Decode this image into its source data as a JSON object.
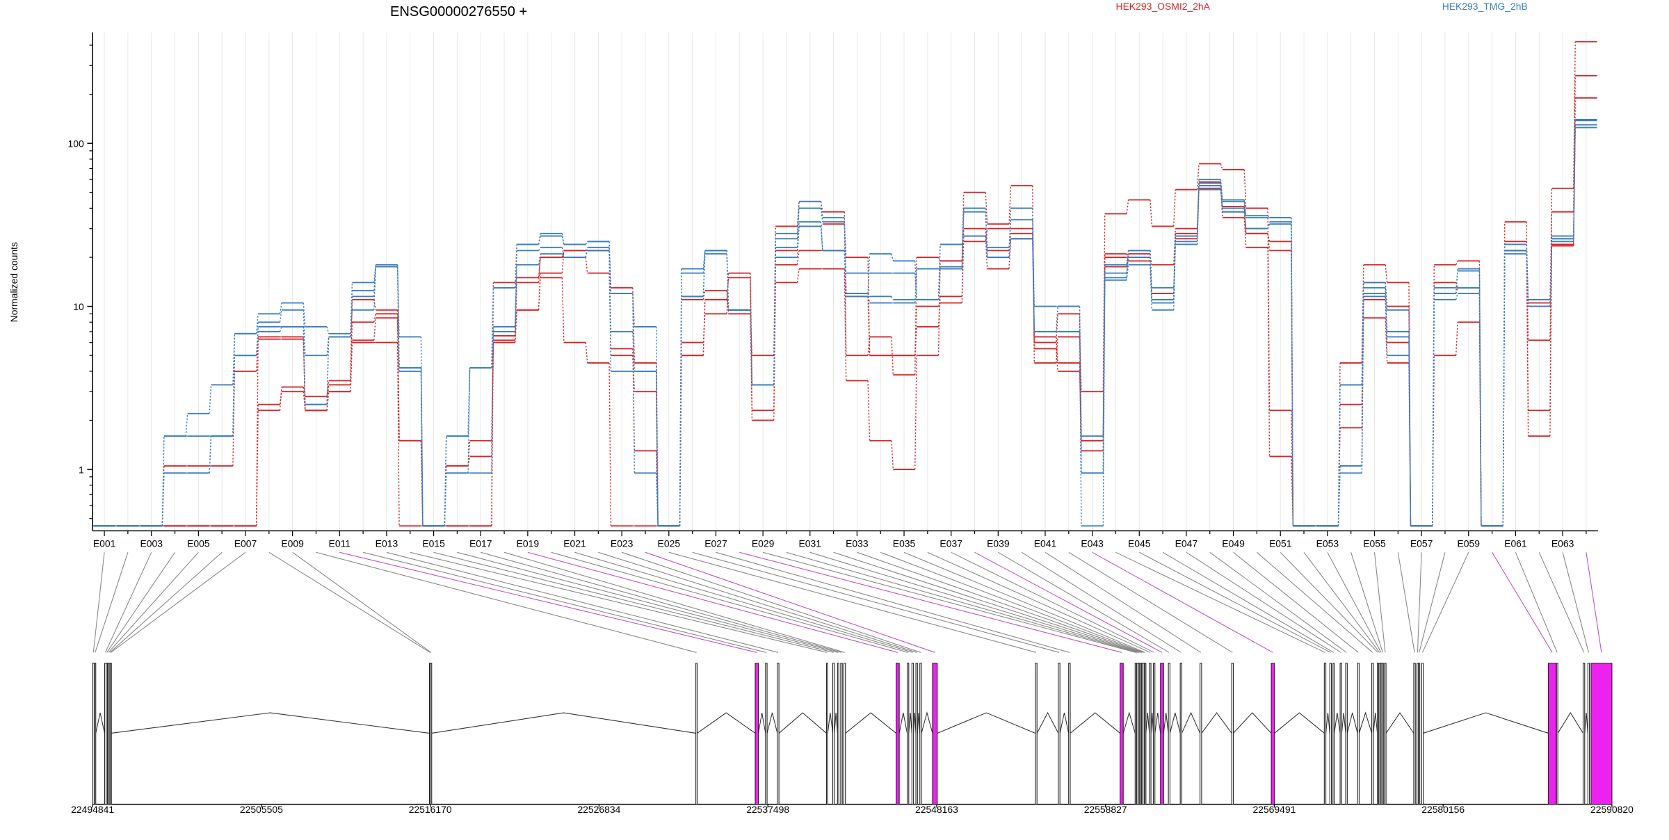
{
  "title": "ENSG00000276550 +",
  "ylabel": "Normalized counts",
  "legend": [
    {
      "label": "HEK293_OSMI2_2hA",
      "color": "#d62728"
    },
    {
      "label": "HEK293_TMG_2hB",
      "color": "#3a7fc1"
    }
  ],
  "chart_data": {
    "type": "line",
    "title": "ENSG00000276550 +",
    "ylabel": "Normalized counts",
    "y_scale": "log",
    "ylim": [
      0.42,
      480
    ],
    "y_ticks": [
      1,
      10,
      100
    ],
    "y_tick_labels": [
      "1",
      "10",
      "100"
    ],
    "grid": "vertical",
    "legend_position": "top",
    "categories": [
      "E001",
      "E002",
      "E003",
      "E004",
      "E005",
      "E006",
      "E007",
      "E008",
      "E009",
      "E010",
      "E011",
      "E012",
      "E013",
      "E014",
      "E015",
      "E016",
      "E017",
      "E018",
      "E019",
      "E020",
      "E021",
      "E022",
      "E023",
      "E024",
      "E025",
      "E026",
      "E027",
      "E028",
      "E029",
      "E030",
      "E031",
      "E032",
      "E033",
      "E034",
      "E035",
      "E036",
      "E037",
      "E038",
      "E039",
      "E040",
      "E041",
      "E042",
      "E043",
      "E044",
      "E045",
      "E046",
      "E047",
      "E048",
      "E049",
      "E050",
      "E051",
      "E052",
      "E053",
      "E054",
      "E055",
      "E056",
      "E057",
      "E058",
      "E059",
      "E060",
      "E061",
      "E062",
      "E063",
      "E064"
    ],
    "x_tick_labels": [
      "E001",
      "E003",
      "E005",
      "E007",
      "E009",
      "E011",
      "E013",
      "E015",
      "E017",
      "E019",
      "E021",
      "E023",
      "E025",
      "E027",
      "E029",
      "E031",
      "E033",
      "E035",
      "E037",
      "E039",
      "E041",
      "E043",
      "E045",
      "E047",
      "E049",
      "E051",
      "E053",
      "E055",
      "E057",
      "E059",
      "E061",
      "E063"
    ],
    "series": [
      {
        "group": "HEK293_OSMI2_2hA",
        "color": "#d62728",
        "values": [
          0.45,
          0.45,
          0.45,
          1.05,
          1.05,
          1.05,
          4.0,
          6.3,
          6.3,
          2.3,
          3.0,
          6.2,
          8.5,
          4.2,
          0.45,
          1.05,
          1.2,
          6.6,
          9.5,
          16.0,
          22.0,
          22.0,
          13.0,
          4.5,
          0.45,
          11.0,
          12.5,
          9.0,
          2.3,
          18.0,
          22.0,
          22.0,
          11.5,
          5.0,
          5.0,
          10.0,
          10.5,
          27.0,
          17.0,
          26.0,
          6.5,
          4.5,
          1.3,
          17.5,
          21.0,
          12.0,
          26.0,
          53.0,
          38.0,
          28.0,
          22.0,
          0.45,
          0.45,
          1.8,
          11.0,
          6.0,
          0.45,
          12.0,
          13.0,
          0.45,
          22.0,
          6.2,
          23.5,
          130.0
        ]
      },
      {
        "group": "HEK293_OSMI2_2hA",
        "color": "#d62728",
        "values": [
          0.45,
          0.45,
          0.45,
          0.45,
          0.45,
          0.45,
          0.45,
          2.3,
          3.2,
          2.8,
          3.5,
          11.0,
          9.5,
          1.5,
          0.45,
          0.45,
          0.45,
          14.0,
          15.0,
          20.0,
          20.0,
          16.0,
          5.5,
          1.3,
          0.45,
          5.0,
          11.0,
          15.0,
          2.0,
          14.0,
          17.0,
          17.0,
          3.5,
          1.5,
          1.0,
          5.0,
          19.0,
          25.0,
          30.0,
          30.0,
          5.5,
          4.0,
          1.5,
          20.0,
          20.0,
          18.0,
          30.0,
          55.0,
          35.0,
          23.0,
          1.2,
          0.45,
          0.45,
          2.5,
          8.5,
          4.5,
          0.45,
          5.0,
          8.0,
          0.45,
          22.0,
          2.3,
          24.0,
          190.0
        ]
      },
      {
        "group": "HEK293_OSMI2_2hA",
        "color": "#d62728",
        "values": [
          0.45,
          0.45,
          0.45,
          0.45,
          0.45,
          0.45,
          0.45,
          2.5,
          3.0,
          2.3,
          3.0,
          6.0,
          6.0,
          0.45,
          0.45,
          0.45,
          0.45,
          6.0,
          9.5,
          15.0,
          6.0,
          4.5,
          0.45,
          0.45,
          0.45,
          5.0,
          11.0,
          9.5,
          5.0,
          31.0,
          44.0,
          38.0,
          5.0,
          6.5,
          3.8,
          20.0,
          19.0,
          50.0,
          32.0,
          55.0,
          4.5,
          6.5,
          3.0,
          37.0,
          45.0,
          31.0,
          52.0,
          75.0,
          69.0,
          40.0,
          2.3,
          0.45,
          0.45,
          4.5,
          18.0,
          14.0,
          0.45,
          18.0,
          19.0,
          0.45,
          33.0,
          1.6,
          53.0,
          420.0
        ]
      },
      {
        "group": "HEK293_OSMI2_2hA",
        "color": "#d62728",
        "values": [
          0.45,
          0.45,
          0.45,
          0.45,
          0.45,
          0.45,
          0.45,
          6.5,
          6.5,
          2.3,
          3.3,
          8.0,
          9.0,
          1.5,
          0.45,
          1.05,
          1.5,
          6.2,
          14.0,
          20.0,
          22.0,
          22.0,
          5.0,
          3.0,
          0.45,
          6.0,
          9.0,
          16.0,
          3.3,
          22.0,
          31.0,
          32.0,
          20.0,
          5.0,
          5.0,
          7.5,
          11.5,
          30.0,
          22.0,
          28.0,
          6.0,
          9.0,
          1.5,
          21.0,
          19.0,
          11.0,
          28.0,
          58.0,
          41.0,
          28.0,
          25.0,
          0.45,
          0.45,
          1.05,
          14.0,
          10.0,
          0.45,
          14.0,
          13.0,
          0.45,
          25.0,
          10.5,
          38.0,
          260.0
        ]
      },
      {
        "group": "HEK293_TMG_2hB",
        "color": "#3a7fc1",
        "values": [
          0.45,
          0.45,
          0.45,
          1.6,
          1.6,
          1.6,
          6.8,
          8.0,
          9.5,
          5.0,
          6.5,
          11.5,
          17.5,
          4.2,
          0.45,
          1.6,
          4.2,
          13.0,
          24.0,
          28.0,
          24.0,
          25.0,
          12.0,
          0.95,
          0.45,
          16.0,
          22.0,
          9.5,
          3.3,
          26.0,
          40.0,
          33.0,
          12.0,
          10.5,
          10.5,
          17.0,
          17.0,
          40.0,
          20.0,
          40.0,
          7.0,
          10.0,
          0.95,
          15.0,
          22.0,
          11.0,
          27.0,
          57.0,
          45.0,
          36.0,
          35.0,
          0.45,
          0.45,
          1.05,
          12.0,
          6.5,
          0.45,
          12.0,
          16.5,
          0.45,
          21.0,
          11.0,
          25.0,
          130.0
        ]
      },
      {
        "group": "HEK293_TMG_2hB",
        "color": "#3a7fc1",
        "values": [
          0.45,
          0.45,
          0.45,
          1.6,
          2.2,
          3.3,
          6.8,
          9.0,
          10.5,
          7.5,
          6.8,
          14.0,
          18.0,
          6.5,
          0.45,
          1.6,
          4.2,
          13.0,
          24.0,
          27.0,
          24.0,
          25.0,
          12.0,
          7.5,
          0.45,
          17.0,
          22.0,
          9.5,
          3.3,
          28.0,
          44.0,
          35.0,
          12.0,
          21.0,
          19.0,
          11.0,
          17.5,
          38.0,
          23.0,
          34.0,
          10.0,
          10.0,
          1.6,
          18.0,
          22.0,
          13.0,
          27.0,
          60.0,
          44.0,
          35.0,
          35.0,
          0.45,
          0.45,
          3.3,
          14.0,
          9.5,
          0.45,
          12.0,
          17.0,
          0.45,
          24.0,
          11.0,
          26.0,
          140.0
        ]
      },
      {
        "group": "HEK293_TMG_2hB",
        "color": "#3a7fc1",
        "values": [
          0.45,
          0.45,
          0.45,
          0.95,
          0.95,
          1.6,
          5.0,
          7.0,
          7.5,
          2.5,
          6.5,
          9.5,
          17.5,
          4.0,
          0.45,
          0.95,
          0.95,
          7.5,
          22.0,
          23.0,
          20.0,
          22.0,
          4.0,
          4.0,
          0.45,
          11.5,
          22.0,
          9.5,
          3.3,
          20.0,
          31.0,
          22.0,
          16.0,
          16.0,
          16.0,
          11.0,
          24.0,
          27.0,
          20.0,
          26.0,
          7.0,
          7.0,
          0.45,
          14.5,
          18.0,
          9.5,
          25.0,
          52.0,
          40.0,
          30.0,
          32.0,
          0.45,
          0.45,
          0.95,
          11.5,
          5.0,
          0.45,
          11.0,
          12.0,
          0.45,
          22.0,
          10.0,
          27.0,
          125.0
        ]
      },
      {
        "group": "HEK293_TMG_2hB",
        "color": "#3a7fc1",
        "values": [
          0.45,
          0.45,
          0.45,
          0.95,
          0.95,
          1.6,
          5.0,
          7.5,
          7.5,
          2.5,
          6.5,
          12.5,
          17.5,
          4.2,
          0.45,
          0.95,
          4.2,
          7.0,
          18.0,
          21.0,
          20.0,
          23.0,
          7.0,
          4.0,
          0.45,
          11.5,
          21.0,
          9.5,
          3.3,
          23.0,
          33.0,
          22.0,
          11.5,
          11.5,
          11.0,
          11.0,
          24.0,
          27.0,
          20.0,
          26.0,
          7.0,
          7.0,
          0.95,
          16.0,
          20.0,
          10.5,
          24.0,
          55.0,
          38.0,
          30.0,
          33.0,
          0.45,
          0.45,
          3.3,
          13.0,
          7.0,
          0.45,
          13.0,
          13.0,
          0.45,
          22.0,
          10.0,
          26.0,
          138.0
        ]
      }
    ],
    "gene_model": {
      "coordinates": [
        "22494841",
        "22505505",
        "22516170",
        "22526834",
        "22537498",
        "22548163",
        "22558827",
        "22569491",
        "22580156",
        "22590820"
      ],
      "coord_start": 22494841,
      "coord_end": 22590820,
      "exon_bins": [
        {
          "id": "E001",
          "start": 22494841,
          "end": 22494940
        },
        {
          "id": "E002",
          "start": 22494960,
          "end": 22495040
        },
        {
          "id": "E003",
          "start": 22495600,
          "end": 22495690
        },
        {
          "id": "E004",
          "start": 22495700,
          "end": 22495780
        },
        {
          "id": "E005",
          "start": 22495800,
          "end": 22495880
        },
        {
          "id": "E006",
          "start": 22495890,
          "end": 22495940
        },
        {
          "id": "E007",
          "start": 22495950,
          "end": 22496000
        },
        {
          "id": "E008",
          "start": 22516120,
          "end": 22516180
        },
        {
          "id": "E009",
          "start": 22516180,
          "end": 22516250
        },
        {
          "id": "E010",
          "start": 22532950,
          "end": 22533030
        },
        {
          "id": "E011",
          "start": 22536700,
          "end": 22536900,
          "highlight": true
        },
        {
          "id": "E012",
          "start": 22537350,
          "end": 22537450
        },
        {
          "id": "E013",
          "start": 22538100,
          "end": 22538200
        },
        {
          "id": "E014",
          "start": 22541200,
          "end": 22541280
        },
        {
          "id": "E015",
          "start": 22541600,
          "end": 22541700
        },
        {
          "id": "E016",
          "start": 22541900,
          "end": 22541980
        },
        {
          "id": "E017",
          "start": 22542100,
          "end": 22542200
        },
        {
          "id": "E018",
          "start": 22542300,
          "end": 22542400
        },
        {
          "id": "E019",
          "start": 22545600,
          "end": 22545800,
          "highlight": true
        },
        {
          "id": "E020",
          "start": 22546300,
          "end": 22546400
        },
        {
          "id": "E021",
          "start": 22546600,
          "end": 22546700
        },
        {
          "id": "E022",
          "start": 22546850,
          "end": 22546950
        },
        {
          "id": "E023",
          "start": 22547100,
          "end": 22547200
        },
        {
          "id": "E024",
          "start": 22547900,
          "end": 22548200,
          "highlight": true
        },
        {
          "id": "E025",
          "start": 22554400,
          "end": 22554500
        },
        {
          "id": "E026",
          "start": 22555850,
          "end": 22555950
        },
        {
          "id": "E027",
          "start": 22556500,
          "end": 22556600
        },
        {
          "id": "E028",
          "start": 22559750,
          "end": 22559950,
          "highlight": true
        },
        {
          "id": "E029",
          "start": 22560700,
          "end": 22560760
        },
        {
          "id": "E030",
          "start": 22560800,
          "end": 22560860
        },
        {
          "id": "E031",
          "start": 22560900,
          "end": 22560960
        },
        {
          "id": "E032",
          "start": 22561000,
          "end": 22561060
        },
        {
          "id": "E033",
          "start": 22561100,
          "end": 22561160
        },
        {
          "id": "E034",
          "start": 22561200,
          "end": 22561260
        },
        {
          "id": "E035",
          "start": 22561300,
          "end": 22561380
        },
        {
          "id": "E036",
          "start": 22561600,
          "end": 22561700
        },
        {
          "id": "E037",
          "start": 22561850,
          "end": 22561950
        },
        {
          "id": "E038",
          "start": 22562300,
          "end": 22562500,
          "highlight": true
        },
        {
          "id": "E039",
          "start": 22562800,
          "end": 22562900
        },
        {
          "id": "E040",
          "start": 22563550,
          "end": 22563650
        },
        {
          "id": "E041",
          "start": 22564800,
          "end": 22564900
        },
        {
          "id": "E042",
          "start": 22566800,
          "end": 22566900
        },
        {
          "id": "E043",
          "start": 22569300,
          "end": 22569500,
          "highlight": true
        },
        {
          "id": "E044",
          "start": 22572650,
          "end": 22572750
        },
        {
          "id": "E045",
          "start": 22573000,
          "end": 22573100
        },
        {
          "id": "E046",
          "start": 22573200,
          "end": 22573280
        },
        {
          "id": "E047",
          "start": 22573650,
          "end": 22573750
        },
        {
          "id": "E048",
          "start": 22574000,
          "end": 22574100
        },
        {
          "id": "E049",
          "start": 22574750,
          "end": 22574850
        },
        {
          "id": "E050",
          "start": 22575650,
          "end": 22575750
        },
        {
          "id": "E051",
          "start": 22576000,
          "end": 22576060
        },
        {
          "id": "E052",
          "start": 22576100,
          "end": 22576160
        },
        {
          "id": "E053",
          "start": 22576200,
          "end": 22576260
        },
        {
          "id": "E054",
          "start": 22576300,
          "end": 22576360
        },
        {
          "id": "E055",
          "start": 22576450,
          "end": 22576550
        },
        {
          "id": "E056",
          "start": 22578300,
          "end": 22578400
        },
        {
          "id": "E057",
          "start": 22578500,
          "end": 22578580
        },
        {
          "id": "E058",
          "start": 22578600,
          "end": 22578680
        },
        {
          "id": "E059",
          "start": 22578800,
          "end": 22578900
        },
        {
          "id": "E060",
          "start": 22586800,
          "end": 22587300,
          "highlight": true
        },
        {
          "id": "E061",
          "start": 22587320,
          "end": 22587400
        },
        {
          "id": "E062",
          "start": 22589000,
          "end": 22589100
        },
        {
          "id": "E063",
          "start": 22589300,
          "end": 22589400
        },
        {
          "id": "E064",
          "start": 22589500,
          "end": 22590820,
          "highlight": true
        }
      ]
    }
  },
  "colors": {
    "osmi": "#d62728",
    "tmg": "#3a7fc1",
    "highlight": "#ee22ee",
    "connector": "#888888",
    "connector_highlight": "#c050c0",
    "axis": "#000000",
    "grid": "#e6e6e6"
  }
}
